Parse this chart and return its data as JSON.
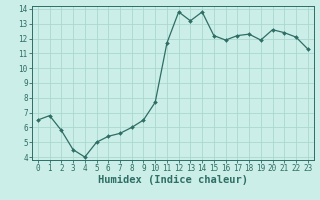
{
  "x": [
    0,
    1,
    2,
    3,
    4,
    5,
    6,
    7,
    8,
    9,
    10,
    11,
    12,
    13,
    14,
    15,
    16,
    17,
    18,
    19,
    20,
    21,
    22,
    23
  ],
  "y": [
    6.5,
    6.8,
    5.8,
    4.5,
    4.0,
    5.0,
    5.4,
    5.6,
    6.0,
    6.5,
    7.7,
    11.7,
    13.8,
    13.2,
    13.8,
    12.2,
    11.9,
    12.2,
    12.3,
    11.9,
    12.6,
    12.4,
    12.1,
    11.3
  ],
  "xlabel": "Humidex (Indice chaleur)",
  "bg_color": "#cceee8",
  "line_color": "#2e6e65",
  "marker_color": "#2e6e65",
  "grid_color": "#aad8d0",
  "axis_color": "#2e6e65",
  "ylim_min": 4,
  "ylim_max": 14,
  "xlim_min": 0,
  "xlim_max": 23,
  "yticks": [
    4,
    5,
    6,
    7,
    8,
    9,
    10,
    11,
    12,
    13,
    14
  ],
  "xticks": [
    0,
    1,
    2,
    3,
    4,
    5,
    6,
    7,
    8,
    9,
    10,
    11,
    12,
    13,
    14,
    15,
    16,
    17,
    18,
    19,
    20,
    21,
    22,
    23
  ],
  "tick_label_fontsize": 5.5,
  "xlabel_fontsize": 7.5
}
